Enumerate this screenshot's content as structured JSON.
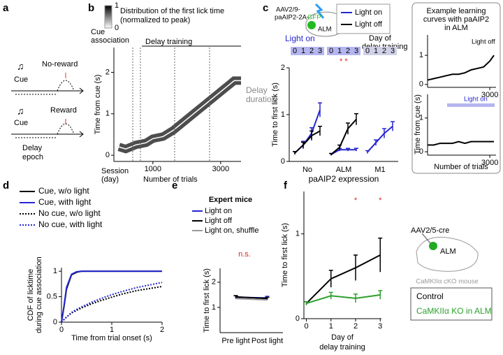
{
  "panel_labels": [
    "a",
    "b",
    "c",
    "d",
    "e",
    "f"
  ],
  "schematic_a": {
    "no_reward": "No-reward",
    "cue_top": "Cue",
    "reward": "Reward",
    "cue_bottom": "Cue",
    "delay": [
      "Delay",
      "epoch"
    ]
  },
  "schematic_c": {
    "virus": [
      "AAV2/9-",
      "paAIP2-2A-",
      "GFP"
    ],
    "region": "ALM",
    "light_on": "Light on",
    "day_label": [
      "Day of",
      "delay training"
    ],
    "days": [
      0,
      1,
      2,
      3
    ],
    "stars": "* *"
  },
  "inset_c": {
    "title": [
      "Example learning",
      "curves with paAIP2",
      "in ALM"
    ],
    "ylabel": "Time from cue (s)",
    "xlabel": "Number of trials"
  },
  "schematic_f": {
    "virus": "AAV2/5-cre",
    "region": "ALM",
    "mouse": "CaMKIIα cKO mouse"
  },
  "chart_data": [
    {
      "type": "line",
      "title": [
        "Distribution of the first lick time",
        "(normalized to peak)"
      ],
      "colorbar": {
        "ticks": [
          0,
          1
        ]
      },
      "annotations": {
        "cue_association": [
          "Cue",
          "association"
        ],
        "delay_training": "Delay training",
        "delay_duration": [
          "Delay",
          "duration"
        ],
        "session": [
          "Session",
          "(day)"
        ]
      },
      "xlabel": "Number of trials",
      "ylabel": "Time from cue (s)",
      "x": [
        0,
        200,
        500,
        800,
        1000,
        1300,
        1600,
        1900,
        2200,
        2500,
        2800,
        3100,
        3400,
        3600
      ],
      "series": [
        {
          "color": "#ffffff",
          "values": [
            0.2,
            0.15,
            0.25,
            0.3,
            0.4,
            0.45,
            0.6,
            0.8,
            1.0,
            1.2,
            1.4,
            1.6,
            1.8,
            1.8
          ]
        }
      ],
      "xlim": [
        -150,
        3600
      ],
      "xticks": [
        1000,
        3000
      ],
      "ylim": [
        -0.15,
        2.6
      ],
      "yticks": [
        0,
        1,
        2
      ]
    },
    {
      "type": "grouped-line",
      "categories": [
        "No",
        "ALM",
        "M1"
      ],
      "xlabel": "paAIP2 expression",
      "ylabel": "Time to first lick (s)",
      "series": [
        {
          "name": "Light on",
          "color": "#2626d0",
          "values": [
            [
              0.18,
              0.35,
              0.6,
              1.1
            ],
            [
              0.15,
              0.25,
              0.25,
              0.25
            ],
            [
              0.2,
              0.4,
              0.6,
              0.75
            ]
          ],
          "errors": [
            [
              0.03,
              0.08,
              0.12,
              0.15
            ],
            [
              0.02,
              0.03,
              0.03,
              0.03
            ],
            [
              0.03,
              0.06,
              0.1,
              0.1
            ]
          ]
        },
        {
          "name": "Light off",
          "color": "#000000",
          "values": [
            [
              0.18,
              0.35,
              0.55,
              0.65
            ],
            [
              0.15,
              0.3,
              0.7,
              0.9
            ],
            null
          ],
          "errors": [
            [
              0.03,
              0.06,
              0.1,
              0.1
            ],
            [
              0.02,
              0.05,
              0.12,
              0.12
            ],
            null
          ]
        }
      ],
      "ylim": [
        0,
        2
      ],
      "yticks": [
        0,
        1,
        2
      ]
    },
    {
      "type": "line",
      "annotation": "Light off",
      "x": [
        0,
        300,
        600,
        900,
        1200,
        1500,
        1800,
        2100,
        2400,
        2700,
        3000,
        3200
      ],
      "series": [
        {
          "color": "#000000",
          "values": [
            0.15,
            0.2,
            0.25,
            0.3,
            0.35,
            0.35,
            0.4,
            0.5,
            0.55,
            0.6,
            0.8,
            1.0
          ]
        }
      ],
      "xlim": [
        0,
        3300
      ],
      "xticks": [
        3000
      ],
      "ylim": [
        -0.1,
        1.7
      ],
      "yticks": [
        0,
        1
      ]
    },
    {
      "type": "line",
      "annotation": "Light on",
      "x": [
        0,
        300,
        600,
        900,
        1200,
        1500,
        1800,
        2100,
        2400,
        2700,
        3000,
        3200
      ],
      "series": [
        {
          "color": "#000000",
          "values": [
            0.2,
            0.2,
            0.25,
            0.25,
            0.25,
            0.3,
            0.25,
            0.3,
            0.3,
            0.3,
            0.3,
            0.3
          ]
        }
      ],
      "xlim": [
        0,
        3300
      ],
      "xticks": [
        3000
      ],
      "ylim": [
        -0.1,
        1.7
      ],
      "yticks": [
        0,
        1
      ]
    },
    {
      "type": "line",
      "xlabel": "Time from trial onset (s)",
      "ylabel": [
        "CDF of licktime",
        "during cue association"
      ],
      "x": [
        0,
        0.05,
        0.1,
        0.2,
        0.3,
        0.4,
        0.6,
        0.8,
        1,
        1.2,
        1.5,
        2
      ],
      "series": [
        {
          "name": "Cue, w/o light",
          "color": "#000000",
          "style": "solid",
          "values": [
            0,
            0.3,
            0.65,
            0.93,
            0.98,
            1,
            1,
            1,
            1,
            1,
            1,
            1
          ]
        },
        {
          "name": "Cue, with light",
          "color": "#2626d0",
          "style": "solid",
          "values": [
            0,
            0.32,
            0.68,
            0.94,
            0.99,
            1,
            1,
            1,
            1,
            1,
            1,
            1
          ]
        },
        {
          "name": "No cue, w/o light",
          "color": "#000000",
          "style": "dotted",
          "values": [
            0,
            0.05,
            0.1,
            0.18,
            0.23,
            0.28,
            0.36,
            0.43,
            0.49,
            0.55,
            0.62,
            0.7
          ]
        },
        {
          "name": "No cue, with light",
          "color": "#2626d0",
          "style": "dotted",
          "values": [
            0,
            0.05,
            0.1,
            0.19,
            0.25,
            0.3,
            0.39,
            0.47,
            0.54,
            0.6,
            0.68,
            0.78
          ]
        }
      ],
      "xlim": [
        0,
        2
      ],
      "xticks": [
        0,
        1,
        2
      ],
      "ylim": [
        0,
        1.07
      ],
      "yticks": [
        0,
        0.5,
        1
      ]
    },
    {
      "type": "line",
      "title": "Expert mice",
      "annotation": "n.s.",
      "categories": [
        "Pre light",
        "Post light"
      ],
      "ylabel": "Time to first lick (s)",
      "series": [
        {
          "name": "Light on",
          "color": "#2626d0",
          "values": [
            1.4,
            1.38
          ],
          "errors": [
            0.06,
            0.06
          ]
        },
        {
          "name": "Light off",
          "color": "#000000",
          "values": [
            1.42,
            1.35
          ],
          "errors": [
            0.05,
            0.05
          ]
        },
        {
          "name": "Light on, shuffle",
          "color": "#9a9a9a",
          "values": [
            1.35,
            1.3
          ]
        }
      ],
      "ylim": [
        0,
        2.55
      ],
      "yticks": [
        1,
        2
      ]
    },
    {
      "type": "line",
      "annotation": "*",
      "annotation_x": [
        2,
        3
      ],
      "xlabel": [
        "Day of",
        "delay training"
      ],
      "ylabel": "Time to first lick (s)",
      "x": [
        0,
        1,
        2,
        3
      ],
      "series": [
        {
          "name": "Control",
          "color": "#000000",
          "values": [
            0.18,
            0.47,
            0.6,
            0.75
          ],
          "errors": [
            0.02,
            0.1,
            0.15,
            0.2
          ]
        },
        {
          "name": "CaMKIIα KO in ALM",
          "color": "#2ca02c",
          "values": [
            0.18,
            0.27,
            0.24,
            0.28
          ],
          "errors": [
            0.02,
            0.04,
            0.05,
            0.05
          ]
        }
      ],
      "xlim": [
        -0.1,
        3.05
      ],
      "xticks": [
        0,
        1,
        2,
        3
      ],
      "ylim": [
        0,
        1.5
      ],
      "yticks": [
        0,
        1
      ]
    }
  ]
}
